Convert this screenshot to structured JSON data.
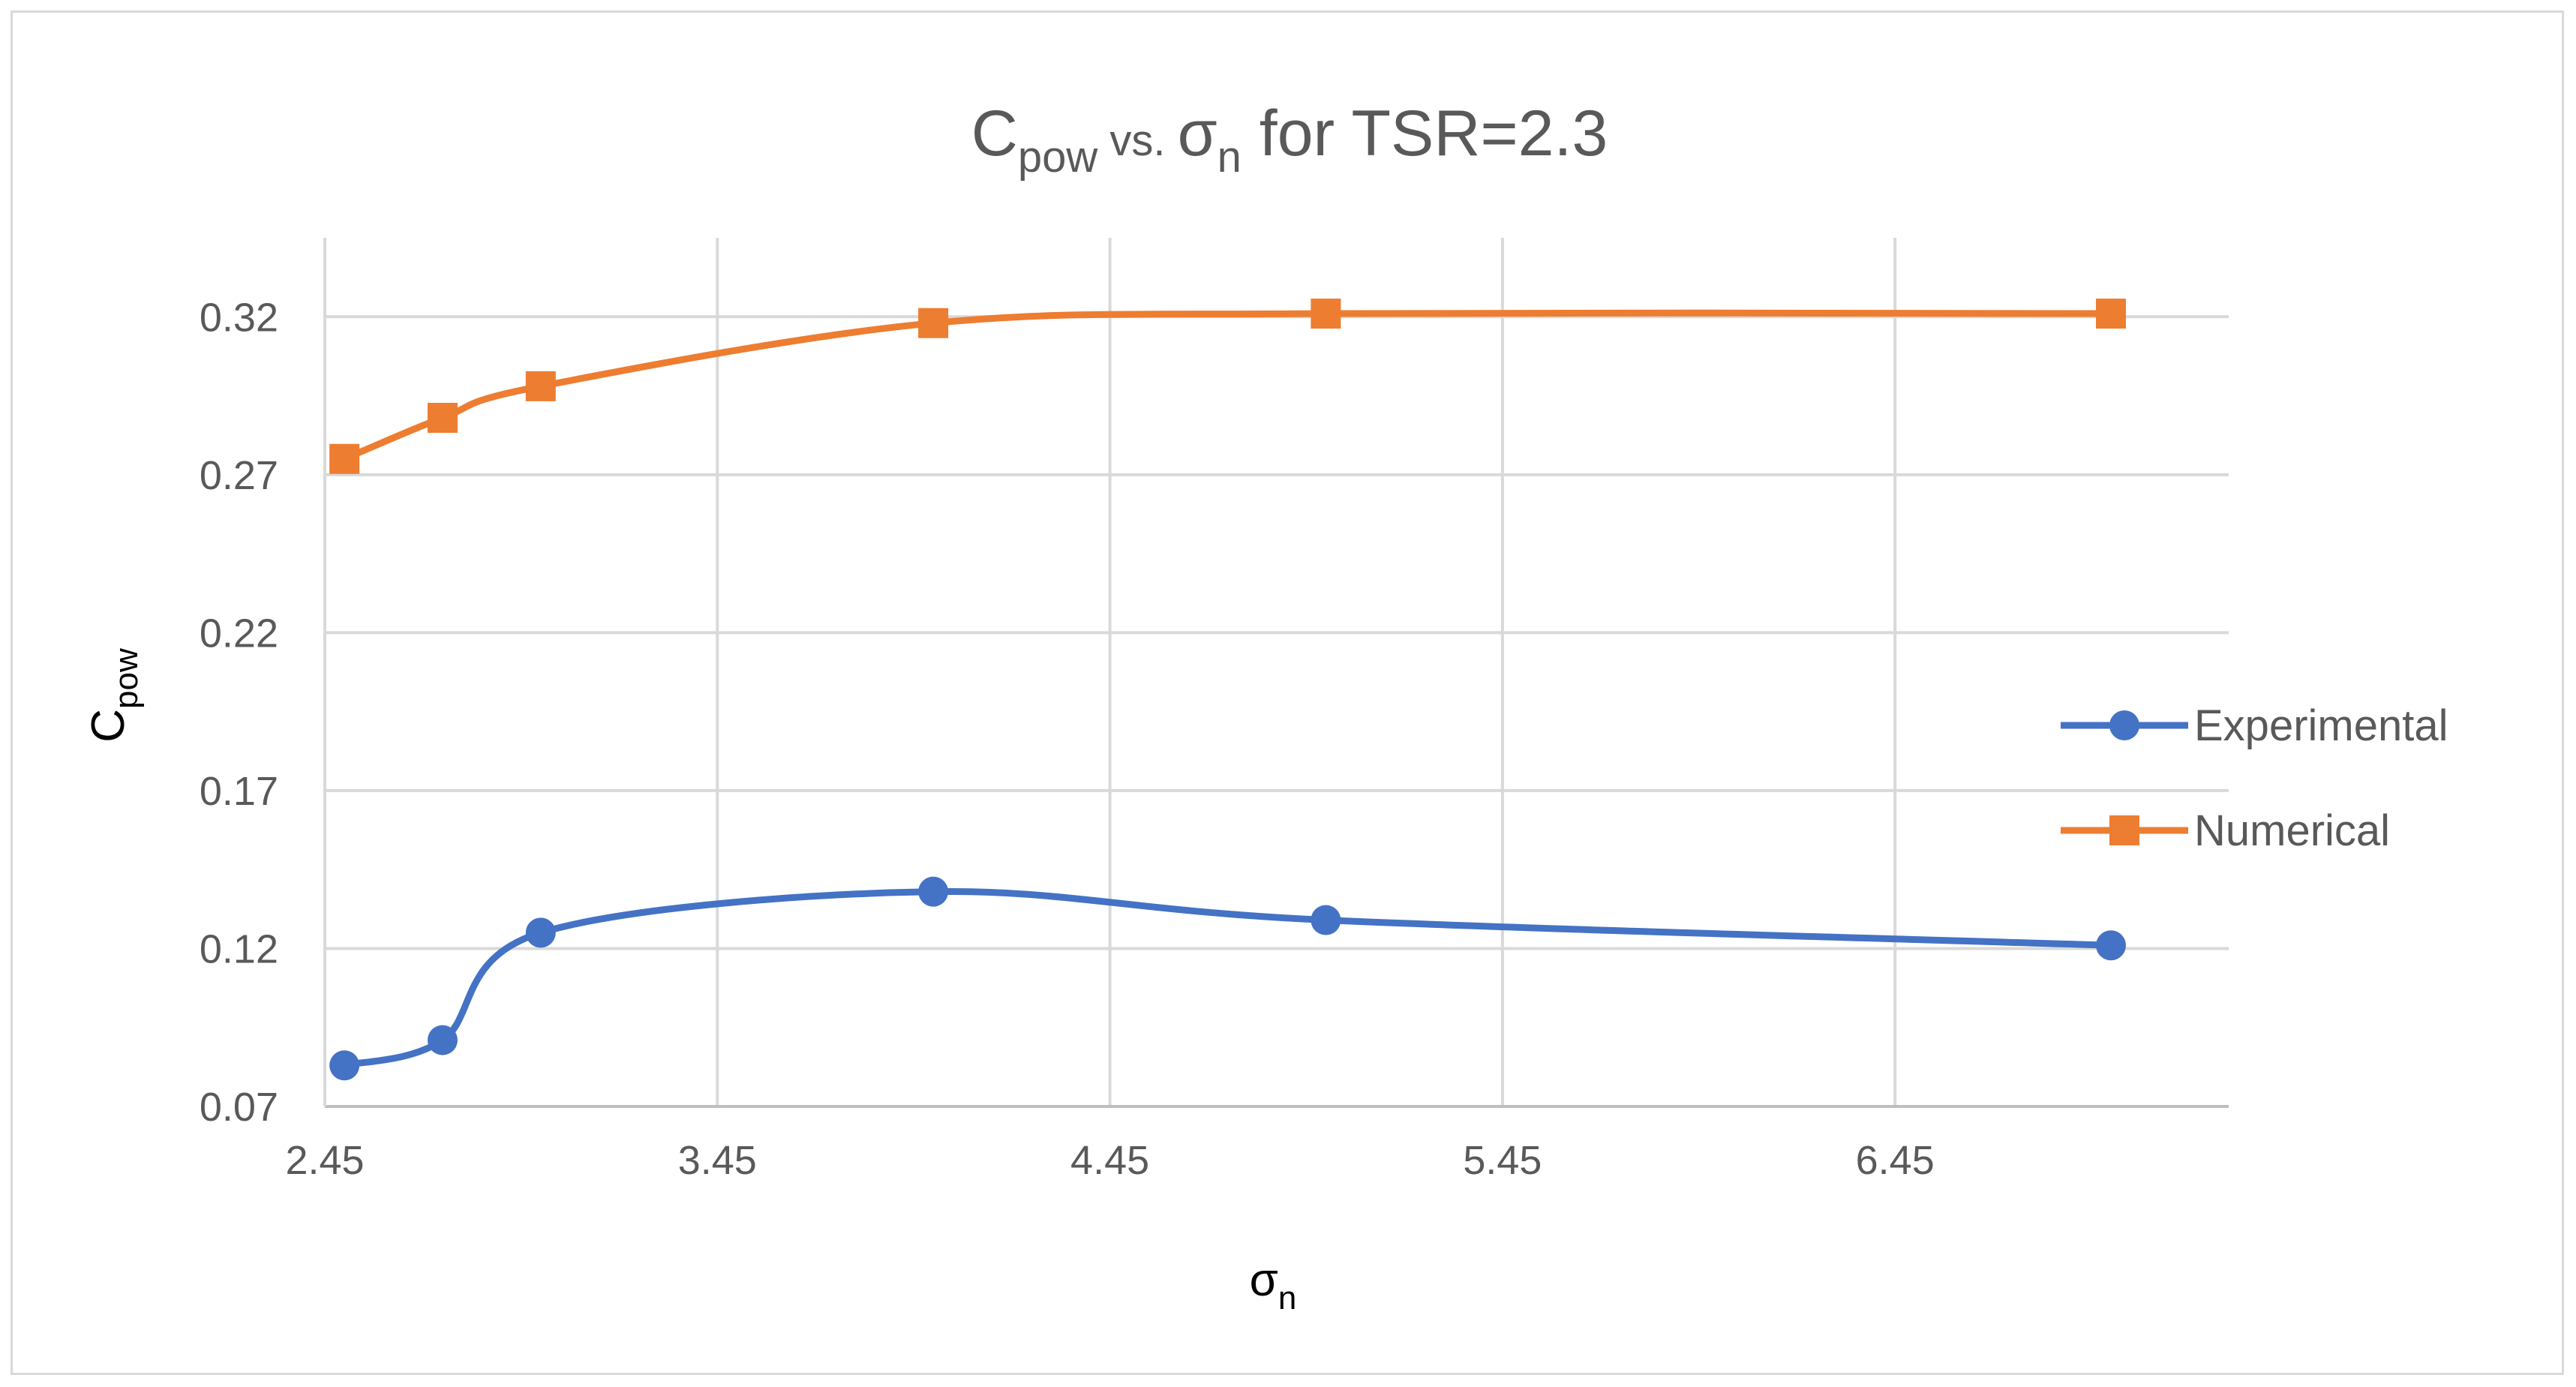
{
  "chart_data": {
    "type": "line",
    "title": {
      "base": "C",
      "sub": "pow",
      "mid": " vs. ",
      "sigma": "σ",
      "sigma_sub": "n",
      "rest": " for TSR=2.3"
    },
    "xlabel": {
      "base": "σ",
      "sub": "n"
    },
    "ylabel": {
      "base": "C",
      "sub": "pow"
    },
    "xlim": [
      2.45,
      7.3
    ],
    "ylim": [
      0.07,
      0.345
    ],
    "x_ticks": [
      2.45,
      3.45,
      4.45,
      5.45,
      6.45
    ],
    "x_tick_labels": [
      "2.45",
      "3.45",
      "4.45",
      "5.45",
      "6.45"
    ],
    "y_ticks": [
      0.07,
      0.12,
      0.17,
      0.22,
      0.27,
      0.32
    ],
    "y_tick_labels": [
      "0.07",
      "0.12",
      "0.17",
      "0.22",
      "0.27",
      "0.32"
    ],
    "grid": true,
    "legend_position": "right",
    "series": [
      {
        "name": "Experimental",
        "color": "#4472c4",
        "marker": "circle",
        "x": [
          2.5,
          2.75,
          3.0,
          4.0,
          5.0,
          7.0
        ],
        "y": [
          0.083,
          0.091,
          0.125,
          0.138,
          0.129,
          0.121
        ]
      },
      {
        "name": "Numerical",
        "color": "#ed7d31",
        "marker": "square",
        "x": [
          2.5,
          2.75,
          3.0,
          4.0,
          5.0,
          7.0
        ],
        "y": [
          0.275,
          0.288,
          0.298,
          0.318,
          0.321,
          0.321
        ]
      }
    ]
  }
}
